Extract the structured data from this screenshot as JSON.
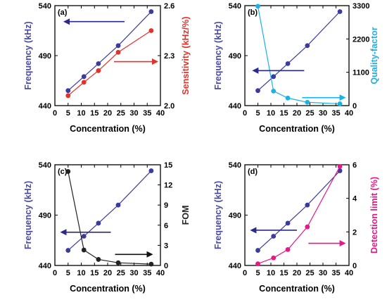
{
  "chart_data": [
    {
      "type": "line",
      "panel_label": "(a)",
      "xlabel": "Concentration (%)",
      "xlim": [
        0,
        40
      ],
      "xticks": [
        0,
        5,
        10,
        15,
        20,
        25,
        30,
        35,
        40
      ],
      "ylabel": "Frequency (kHz)",
      "ylim": [
        440,
        540
      ],
      "yticks": [
        440,
        490,
        540
      ],
      "y2label": "Sensitivity (kHz/%)",
      "y2lim": [
        2.0,
        2.6
      ],
      "y2ticks": [
        "2.0",
        "2.3",
        "2.6"
      ],
      "series": [
        {
          "axis": "left",
          "color": "#3b3b9e",
          "x": [
            5,
            11,
            16.5,
            24,
            36.5
          ],
          "y": [
            455,
            469,
            482,
            500,
            534
          ]
        },
        {
          "axis": "right",
          "color": "#e8302a",
          "x": [
            5,
            11,
            16.5,
            24,
            36.5
          ],
          "y": [
            2.06,
            2.14,
            2.21,
            2.32,
            2.45
          ]
        }
      ],
      "arrows": [
        {
          "color": "#2a2a8a",
          "direction": "left",
          "points_to_axis": "left"
        },
        {
          "color": "#e8302a",
          "direction": "right",
          "points_to_axis": "right"
        }
      ],
      "grid": false
    },
    {
      "type": "line",
      "panel_label": "(b)",
      "xlabel": "Concentration (%)",
      "xlim": [
        0,
        40
      ],
      "xticks": [
        0,
        5,
        10,
        15,
        20,
        25,
        30,
        35,
        40
      ],
      "ylabel": "Frequency (kHz)",
      "ylim": [
        440,
        540
      ],
      "yticks": [
        440,
        490,
        540
      ],
      "y2label": "Quality-factor",
      "y2lim": [
        0,
        3300
      ],
      "y2ticks": [
        "0",
        "1100",
        "2200",
        "3300"
      ],
      "series": [
        {
          "axis": "left",
          "color": "#3b3b9e",
          "x": [
            5,
            11,
            16.5,
            24,
            36.5
          ],
          "y": [
            455,
            469,
            482,
            500,
            534
          ]
        },
        {
          "axis": "right",
          "color": "#1ab2e6",
          "x": [
            5,
            11,
            16.5,
            24,
            36.5
          ],
          "y": [
            3280,
            480,
            250,
            110,
            60
          ]
        }
      ],
      "arrows": [
        {
          "color": "#2a2a8a",
          "direction": "left",
          "points_to_axis": "left"
        },
        {
          "color": "#1ab2e6",
          "direction": "right",
          "points_to_axis": "right"
        }
      ],
      "grid": false
    },
    {
      "type": "line",
      "panel_label": "(c)",
      "xlabel": "Concentration (%)",
      "xlim": [
        0,
        40
      ],
      "xticks": [
        0,
        5,
        10,
        15,
        20,
        25,
        30,
        35,
        40
      ],
      "ylabel": "Frequency (kHz)",
      "ylim": [
        440,
        540
      ],
      "yticks": [
        440,
        490,
        540
      ],
      "y2label": "FOM",
      "y2lim": [
        0,
        15
      ],
      "y2ticks": [
        "0",
        "3",
        "6",
        "9",
        "12",
        "15"
      ],
      "series": [
        {
          "axis": "left",
          "color": "#3b3b9e",
          "x": [
            5,
            11,
            16.5,
            24,
            36.5
          ],
          "y": [
            455,
            469,
            482,
            500,
            534
          ]
        },
        {
          "axis": "right",
          "color": "#222222",
          "x": [
            5,
            11,
            16.5,
            24,
            36.5
          ],
          "y": [
            14.0,
            2.3,
            0.9,
            0.4,
            0.2
          ]
        }
      ],
      "arrows": [
        {
          "color": "#2a2a8a",
          "direction": "left",
          "points_to_axis": "left"
        },
        {
          "color": "#111111",
          "direction": "right",
          "points_to_axis": "right"
        }
      ],
      "grid": false
    },
    {
      "type": "line",
      "panel_label": "(d)",
      "xlabel": "Concentration (%)",
      "xlim": [
        0,
        40
      ],
      "xticks": [
        0,
        5,
        10,
        15,
        20,
        25,
        30,
        35,
        40
      ],
      "ylabel": "Frequency (kHz)",
      "ylim": [
        440,
        540
      ],
      "yticks": [
        440,
        490,
        540
      ],
      "y2label": "Detection limit (%)",
      "y2lim": [
        0,
        6
      ],
      "y2ticks": [
        "0",
        "2",
        "4",
        "6"
      ],
      "series": [
        {
          "axis": "left",
          "color": "#3b3b9e",
          "x": [
            5,
            11,
            16.5,
            24,
            36.5
          ],
          "y": [
            455,
            469,
            482,
            500,
            534
          ]
        },
        {
          "axis": "right",
          "color": "#e6188a",
          "x": [
            5,
            11,
            16.5,
            24,
            36.5
          ],
          "y": [
            0.1,
            0.45,
            0.95,
            2.3,
            5.9
          ]
        }
      ],
      "arrows": [
        {
          "color": "#2a2a8a",
          "direction": "left",
          "points_to_axis": "left"
        },
        {
          "color": "#e6188a",
          "direction": "right",
          "points_to_axis": "right"
        }
      ],
      "grid": false
    }
  ]
}
